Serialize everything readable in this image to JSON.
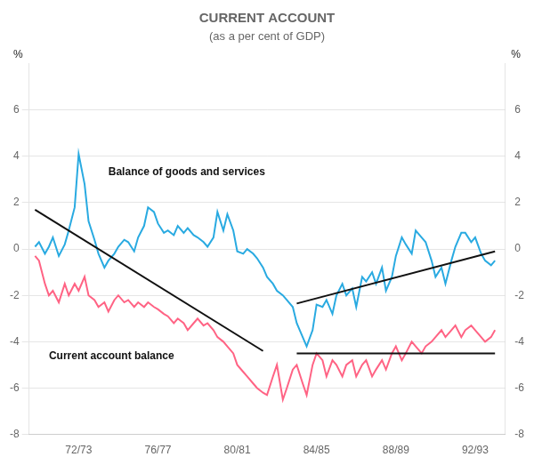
{
  "chart_data": {
    "type": "line",
    "title": "CURRENT ACCOUNT",
    "subtitle": "(as a per cent of GDP)",
    "ylabel": "%",
    "y2label": "%",
    "annotations": [
      {
        "text": "Balance of goods and services",
        "x": 1974.0,
        "y": 3.2
      },
      {
        "text": "Current account balance",
        "x": 1971.0,
        "y": -4.75
      }
    ],
    "series": [
      {
        "color": "#ff6384",
        "x": [
          1970.3,
          1970.5,
          1970.8,
          1971.0,
          1971.2,
          1971.5,
          1971.8,
          1972.0,
          1972.3,
          1972.5,
          1972.8,
          1973.0,
          1973.3,
          1973.5,
          1973.8,
          1974.0,
          1974.3,
          1974.5,
          1974.8,
          1975.0,
          1975.3,
          1975.5,
          1975.8,
          1976.0,
          1976.3,
          1976.5,
          1976.8,
          1977.0,
          1977.3,
          1977.5,
          1977.8,
          1978.0,
          1978.3,
          1978.5,
          1978.8,
          1979.0,
          1979.3,
          1979.5,
          1979.8,
          1980.0,
          1980.3,
          1980.5,
          1980.8,
          1981.0,
          1981.3,
          1981.5,
          1981.8,
          1982.0,
          1982.3,
          1982.5,
          1982.8,
          1983.0,
          1983.3,
          1983.5,
          1983.8,
          1984.0,
          1984.3,
          1984.5,
          1984.8,
          1985.0,
          1985.3,
          1985.5,
          1985.8,
          1986.0,
          1986.3,
          1986.5,
          1986.8,
          1987.0,
          1987.3,
          1987.5,
          1987.8,
          1988.0,
          1988.3,
          1988.5,
          1988.8,
          1989.0,
          1989.3,
          1989.5,
          1989.8,
          1990.0,
          1990.3,
          1990.5,
          1990.8,
          1991.0,
          1991.3,
          1991.5,
          1991.8,
          1992.0,
          1992.3,
          1992.5,
          1992.8,
          1993.0,
          1993.3,
          1993.5
        ],
        "values": [
          -0.3,
          -0.5,
          -1.5,
          -2.0,
          -1.8,
          -2.3,
          -1.5,
          -2.0,
          -1.5,
          -1.8,
          -1.2,
          -2.0,
          -2.2,
          -2.5,
          -2.3,
          -2.7,
          -2.2,
          -2.0,
          -2.3,
          -2.2,
          -2.5,
          -2.3,
          -2.5,
          -2.3,
          -2.5,
          -2.6,
          -2.8,
          -2.9,
          -3.2,
          -3.0,
          -3.2,
          -3.5,
          -3.2,
          -3.0,
          -3.3,
          -3.2,
          -3.5,
          -3.8,
          -4.0,
          -4.2,
          -4.5,
          -5.0,
          -5.3,
          -5.5,
          -5.8,
          -6.0,
          -6.2,
          -6.3,
          -5.5,
          -5.0,
          -6.5,
          -6.0,
          -5.2,
          -5.0,
          -5.8,
          -6.3,
          -5.0,
          -4.5,
          -4.8,
          -5.5,
          -4.8,
          -5.0,
          -5.5,
          -5.0,
          -4.8,
          -5.5,
          -5.0,
          -4.8,
          -5.5,
          -5.2,
          -4.8,
          -5.2,
          -4.5,
          -4.2,
          -4.8,
          -4.5,
          -4.0,
          -4.2,
          -4.5,
          -4.2,
          -4.0,
          -3.8,
          -3.5,
          -3.8,
          -3.5,
          -3.3,
          -3.8,
          -3.5,
          -3.3,
          -3.5,
          -3.8,
          -4.0,
          -3.8,
          -3.5
        ]
      },
      {
        "color": "#29aae1",
        "x": [
          1970.3,
          1970.5,
          1970.8,
          1971.0,
          1971.2,
          1971.5,
          1971.8,
          1972.0,
          1972.3,
          1972.5,
          1972.8,
          1973.0,
          1973.3,
          1973.5,
          1973.8,
          1974.0,
          1974.3,
          1974.5,
          1974.8,
          1975.0,
          1975.3,
          1975.5,
          1975.8,
          1976.0,
          1976.3,
          1976.5,
          1976.8,
          1977.0,
          1977.3,
          1977.5,
          1977.8,
          1978.0,
          1978.3,
          1978.5,
          1978.8,
          1979.0,
          1979.3,
          1979.5,
          1979.8,
          1980.0,
          1980.3,
          1980.5,
          1980.8,
          1981.0,
          1981.3,
          1981.5,
          1981.8,
          1982.0,
          1982.3,
          1982.5,
          1982.8,
          1983.0,
          1983.3,
          1983.5,
          1983.8,
          1984.0,
          1984.3,
          1984.5,
          1984.8,
          1985.0,
          1985.3,
          1985.5,
          1985.8,
          1986.0,
          1986.3,
          1986.5,
          1986.8,
          1987.0,
          1987.3,
          1987.5,
          1987.8,
          1988.0,
          1988.3,
          1988.5,
          1988.8,
          1989.0,
          1989.3,
          1989.5,
          1989.8,
          1990.0,
          1990.3,
          1990.5,
          1990.8,
          1991.0,
          1991.3,
          1991.5,
          1991.8,
          1992.0,
          1992.3,
          1992.5,
          1992.8,
          1993.0,
          1993.3,
          1993.5
        ],
        "values": [
          0.1,
          0.3,
          -0.2,
          0.1,
          0.5,
          -0.3,
          0.2,
          0.8,
          1.8,
          4.1,
          2.8,
          1.2,
          0.4,
          -0.2,
          -0.8,
          -0.5,
          -0.2,
          0.1,
          0.4,
          0.3,
          -0.1,
          0.5,
          1.0,
          1.8,
          1.6,
          1.1,
          0.7,
          0.8,
          0.6,
          1.0,
          0.7,
          0.9,
          0.6,
          0.5,
          0.3,
          0.1,
          0.5,
          1.6,
          0.8,
          1.5,
          0.8,
          -0.1,
          -0.2,
          0.0,
          -0.2,
          -0.4,
          -0.8,
          -1.2,
          -1.5,
          -1.8,
          -2.0,
          -2.2,
          -2.5,
          -3.2,
          -3.8,
          -4.2,
          -3.5,
          -2.4,
          -2.5,
          -2.2,
          -2.8,
          -2.0,
          -1.5,
          -2.0,
          -1.7,
          -2.5,
          -1.2,
          -1.4,
          -1.0,
          -1.5,
          -0.8,
          -1.8,
          -1.2,
          -0.3,
          0.5,
          0.2,
          -0.2,
          0.8,
          0.5,
          0.3,
          -0.5,
          -1.2,
          -0.8,
          -1.5,
          -0.5,
          0.1,
          0.7,
          0.7,
          0.3,
          0.5,
          -0.2,
          -0.5,
          -0.7,
          -0.5
        ]
      },
      {
        "color": "#111111",
        "x": [
          1970.3,
          1981.8
        ],
        "values": [
          1.7,
          -4.4
        ]
      },
      {
        "color": "#111111",
        "x": [
          1983.5,
          1993.5
        ],
        "values": [
          -2.35,
          -0.1
        ]
      },
      {
        "color": "#111111",
        "x": [
          1983.5,
          1993.5
        ],
        "values": [
          -4.5,
          -4.5
        ]
      }
    ],
    "xlim": [
      1970.0,
      1994.0
    ],
    "xticks": [
      {
        "value": 1972.5,
        "label": "72/73"
      },
      {
        "value": 1976.5,
        "label": "76/77"
      },
      {
        "value": 1980.5,
        "label": "80/81"
      },
      {
        "value": 1984.5,
        "label": "84/85"
      },
      {
        "value": 1988.5,
        "label": "88/89"
      },
      {
        "value": 1992.5,
        "label": "92/93"
      }
    ],
    "ylim": [
      -8,
      8
    ],
    "yticks": [
      -8,
      -6,
      -4,
      -2,
      0,
      2,
      4,
      6
    ],
    "y2lim": [
      -8,
      8
    ],
    "y2ticks": [
      -8,
      -6,
      -4,
      -2,
      0,
      2,
      4,
      6
    ],
    "grid": "y"
  }
}
